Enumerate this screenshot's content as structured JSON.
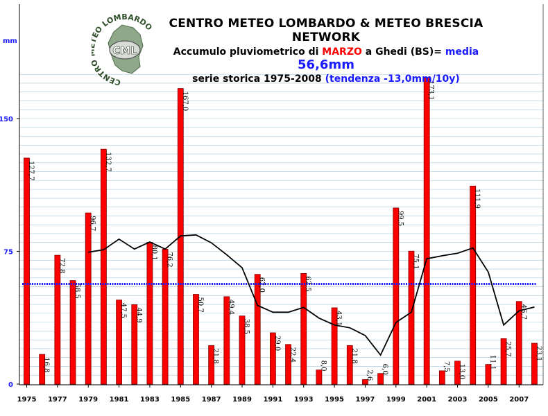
{
  "title": {
    "line1": "CENTRO METEO LOMBARDO & METEO BRESCIA NETWORK",
    "line2_prefix": "Accumulo pluviometrico di ",
    "line2_month": "MARZO",
    "line2_mid": " a Ghedi (BS)= ",
    "line2_media_label": "media ",
    "line2_media_value": "56,6mm",
    "line3_prefix": "serie storica 1975-2008 ",
    "line3_trend": "(tendenza -13,0mm/10y)"
  },
  "y_unit": "mm",
  "logo": {
    "text": "CML",
    "ring_text": "CENTRO METEO LOMBARDO"
  },
  "colors": {
    "bar": "#ff0000",
    "bar_stroke": "#800000",
    "mean_line": "#1a1aff",
    "trend_line": "#000000",
    "grid": "#a9c8d8"
  },
  "chart_data": {
    "type": "bar",
    "ylim": [
      0,
      175
    ],
    "yticks": [
      0,
      75,
      150
    ],
    "xtick_labels": [
      "1975",
      "1977",
      "1979",
      "1981",
      "1983",
      "1985",
      "1987",
      "1989",
      "1991",
      "1993",
      "1995",
      "1997",
      "1999",
      "2001",
      "2003",
      "2005",
      "2007"
    ],
    "categories": [
      1975,
      1976,
      1977,
      1978,
      1979,
      1980,
      1981,
      1982,
      1983,
      1984,
      1985,
      1986,
      1987,
      1988,
      1989,
      1990,
      1991,
      1992,
      1993,
      1994,
      1995,
      1996,
      1997,
      1998,
      1999,
      2000,
      2001,
      2002,
      2003,
      2004,
      2005,
      2006,
      2007,
      2008
    ],
    "series": [
      {
        "values": [
          127.7,
          16.8,
          72.8,
          58.5,
          96.7,
          132.7,
          47.5,
          44.9,
          80.1,
          76.2,
          167.0,
          50.7,
          21.8,
          49.4,
          38.5,
          62.0,
          29.0,
          22.4,
          62.5,
          8.0,
          43.1,
          21.8,
          2.6,
          6.0,
          99.5,
          75.1,
          173.1,
          7.5,
          13.0,
          111.9,
          11.1,
          25.7,
          46.7,
          23.1
        ],
        "labels": [
          "127,7",
          "16,8",
          "72,8",
          "58,5",
          "96,7",
          "132,7",
          "47,5",
          "44,9",
          "80,1",
          "76,2",
          "167,0",
          "50,7",
          "21,8",
          "49,4",
          "38,5",
          "62,0",
          "29,0",
          "22,4",
          "62,5",
          "8,0",
          "43,1",
          "21,8",
          "2,6",
          "6,0",
          "99,5",
          "75,1",
          "173,1",
          "7,5",
          "13,0",
          "111,9",
          "11,1",
          "25,7",
          "46,7",
          "23,1"
        ]
      }
    ],
    "mean_line": {
      "value": 56.6
    },
    "trend_line": {
      "x": [
        1979,
        1980,
        1981,
        1982,
        1983,
        1984,
        1985,
        1986,
        1987,
        1988,
        1989,
        1990,
        1991,
        1992,
        1993,
        1994,
        1995,
        1996,
        1997,
        1998,
        1999,
        2000,
        2001,
        2002,
        2003,
        2004,
        2005,
        2006,
        2007,
        2008
      ],
      "y": [
        74.5,
        75.9,
        81.9,
        76.3,
        80.3,
        76.3,
        83.7,
        84.3,
        79.8,
        73.1,
        65.7,
        44.5,
        40.6,
        40.6,
        43.3,
        37.3,
        33.4,
        31.8,
        27.4,
        16.4,
        34.8,
        40.6,
        70.8,
        72.5,
        73.9,
        76.9,
        63.3,
        33.4,
        41.4,
        43.5
      ]
    },
    "grid": true
  }
}
